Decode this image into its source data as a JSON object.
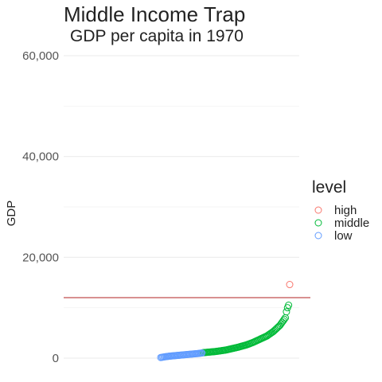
{
  "chart_data": {
    "type": "scatter",
    "title": "Middle Income Trap",
    "subtitle": "GDP per capita in 1970",
    "xlabel": "",
    "ylabel": "GDP",
    "ylim": [
      -200,
      61500
    ],
    "yticks": [
      0,
      20000,
      40000,
      60000
    ],
    "ytick_labels": [
      "0",
      "20,000",
      "40,000",
      "60,000"
    ],
    "x_axis_visible": false,
    "grid": "horizontal",
    "reference_line": {
      "y": 12000,
      "color": "#B22222"
    },
    "legend": {
      "title": "level",
      "placement": "right",
      "entries": [
        "high",
        "middle",
        "low"
      ]
    },
    "series": [
      {
        "name": "high",
        "color": "#F8766D",
        "x": [
          120
        ],
        "y": [
          14600
        ]
      },
      {
        "name": "middle",
        "color": "#00BA38",
        "x": [
          40,
          41,
          42,
          43,
          44,
          45,
          46,
          47,
          48,
          49,
          50,
          51,
          52,
          53,
          54,
          55,
          56,
          57,
          58,
          59,
          60,
          61,
          62,
          63,
          64,
          65,
          66,
          67,
          68,
          69,
          70,
          71,
          72,
          73,
          74,
          75,
          76,
          77,
          78,
          79,
          80,
          81,
          82,
          83,
          84,
          85,
          86,
          87,
          88,
          89,
          90,
          91,
          92,
          93,
          94,
          95,
          96,
          97,
          98,
          99,
          100,
          101,
          102,
          103,
          104,
          105,
          106,
          107,
          108,
          109,
          110,
          111,
          112,
          113,
          114,
          115,
          116,
          117,
          118,
          119
        ],
        "y": [
          1080,
          1100,
          1120,
          1140,
          1160,
          1180,
          1200,
          1220,
          1240,
          1260,
          1280,
          1300,
          1330,
          1360,
          1390,
          1420,
          1450,
          1480,
          1510,
          1540,
          1570,
          1600,
          1650,
          1700,
          1750,
          1800,
          1850,
          1900,
          1950,
          2000,
          2050,
          2100,
          2150,
          2200,
          2260,
          2320,
          2380,
          2440,
          2500,
          2560,
          2620,
          2700,
          2780,
          2860,
          2940,
          3020,
          3100,
          3200,
          3300,
          3400,
          3500,
          3600,
          3700,
          3800,
          3900,
          4000,
          4100,
          4200,
          4300,
          4400,
          4550,
          4700,
          4850,
          5000,
          5150,
          5300,
          5500,
          5700,
          5900,
          6100,
          6300,
          6500,
          6800,
          7100,
          7400,
          7700,
          8000,
          9200,
          10000,
          10500
        ]
      },
      {
        "name": "low",
        "color": "#619CFF",
        "x": [
          1,
          2,
          3,
          4,
          5,
          6,
          7,
          8,
          9,
          10,
          11,
          12,
          13,
          14,
          15,
          16,
          17,
          18,
          19,
          20,
          21,
          22,
          23,
          24,
          25,
          26,
          27,
          28,
          29,
          30,
          31,
          32,
          33,
          34,
          35,
          36,
          37,
          38,
          39
        ],
        "y": [
          120,
          160,
          200,
          240,
          270,
          300,
          330,
          360,
          390,
          410,
          430,
          450,
          470,
          490,
          510,
          530,
          550,
          570,
          590,
          610,
          630,
          650,
          670,
          690,
          710,
          730,
          750,
          770,
          790,
          810,
          830,
          850,
          870,
          890,
          910,
          930,
          960,
          990,
          1020
        ]
      }
    ]
  }
}
